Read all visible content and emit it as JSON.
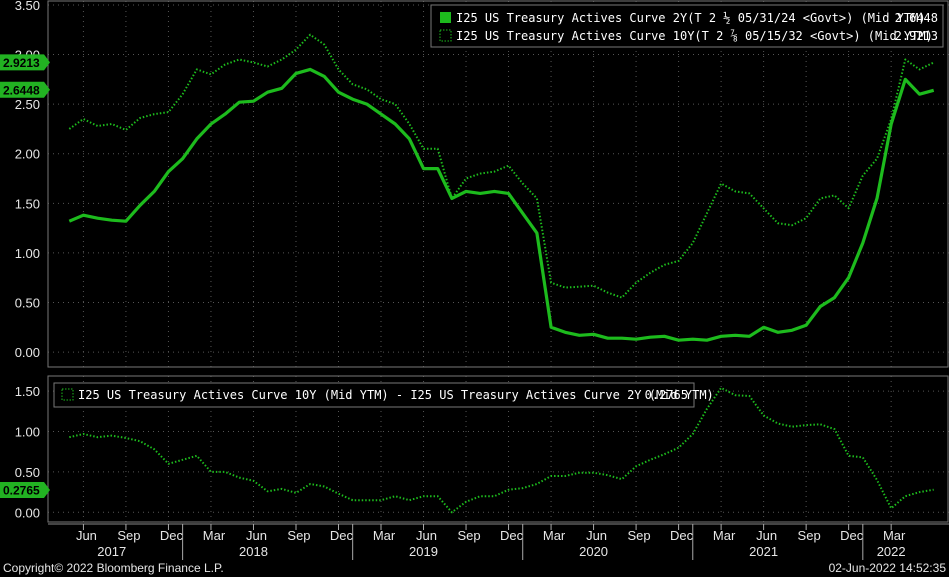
{
  "colors": {
    "background": "#000000",
    "line": "#1dbb1d",
    "tag": "#22b222",
    "grid": "#555555",
    "panel_border": "#777777"
  },
  "footer": {
    "copyright": "Copyright© 2022 Bloomberg Finance L.P.",
    "timestamp": "02-Jun-2022 14:52:35"
  },
  "chart_data": [
    {
      "type": "line",
      "panel": "top",
      "ylim": [
        -0.15,
        3.55
      ],
      "yticks": [
        "3.50",
        "3.00",
        "2.50",
        "2.00",
        "1.50",
        "1.00",
        "0.50",
        "0.00"
      ],
      "ytick_values": [
        3.5,
        3.0,
        2.5,
        2.0,
        1.5,
        1.0,
        0.5,
        0.0
      ],
      "x": [
        "2017-05",
        "2017-06",
        "2017-07",
        "2017-08",
        "2017-09",
        "2017-10",
        "2017-11",
        "2017-12",
        "2018-01",
        "2018-02",
        "2018-03",
        "2018-04",
        "2018-05",
        "2018-06",
        "2018-07",
        "2018-08",
        "2018-09",
        "2018-10",
        "2018-11",
        "2018-12",
        "2019-01",
        "2019-02",
        "2019-03",
        "2019-04",
        "2019-05",
        "2019-06",
        "2019-07",
        "2019-08",
        "2019-09",
        "2019-10",
        "2019-11",
        "2019-12",
        "2020-01",
        "2020-02",
        "2020-03",
        "2020-04",
        "2020-05",
        "2020-06",
        "2020-07",
        "2020-08",
        "2020-09",
        "2020-10",
        "2020-11",
        "2020-12",
        "2021-01",
        "2021-02",
        "2021-03",
        "2021-04",
        "2021-05",
        "2021-06",
        "2021-07",
        "2021-08",
        "2021-09",
        "2021-10",
        "2021-11",
        "2021-12",
        "2022-01",
        "2022-02",
        "2022-03",
        "2022-04",
        "2022-05",
        "2022-06"
      ],
      "series": [
        {
          "name": "I25 US Treasury Actives Curve 2Y(T 2 ½ 05/31/24 <Govt>) (Mid YTM)",
          "last": "2.6448",
          "style": "solid",
          "values": [
            1.32,
            1.38,
            1.35,
            1.33,
            1.32,
            1.48,
            1.62,
            1.82,
            1.95,
            2.15,
            2.3,
            2.4,
            2.52,
            2.53,
            2.62,
            2.66,
            2.81,
            2.85,
            2.78,
            2.62,
            2.55,
            2.5,
            2.4,
            2.3,
            2.15,
            1.85,
            1.85,
            1.55,
            1.62,
            1.6,
            1.62,
            1.6,
            1.4,
            1.2,
            0.25,
            0.2,
            0.17,
            0.18,
            0.14,
            0.14,
            0.13,
            0.15,
            0.16,
            0.12,
            0.13,
            0.12,
            0.16,
            0.17,
            0.16,
            0.25,
            0.2,
            0.22,
            0.27,
            0.46,
            0.55,
            0.75,
            1.1,
            1.55,
            2.3,
            2.75,
            2.6,
            2.64
          ]
        },
        {
          "name": "I25 US Treasury Actives Curve 10Y(T 2 ⅞ 05/15/32 <Govt>) (Mid YTM)",
          "last": "2.9213",
          "style": "dotted",
          "values": [
            2.25,
            2.35,
            2.28,
            2.3,
            2.24,
            2.36,
            2.4,
            2.42,
            2.6,
            2.85,
            2.8,
            2.9,
            2.95,
            2.92,
            2.88,
            2.95,
            3.05,
            3.2,
            3.1,
            2.85,
            2.7,
            2.65,
            2.55,
            2.5,
            2.3,
            2.05,
            2.05,
            1.55,
            1.75,
            1.8,
            1.82,
            1.88,
            1.7,
            1.55,
            0.7,
            0.65,
            0.66,
            0.67,
            0.6,
            0.55,
            0.7,
            0.8,
            0.88,
            0.92,
            1.1,
            1.4,
            1.7,
            1.62,
            1.6,
            1.45,
            1.3,
            1.28,
            1.35,
            1.55,
            1.58,
            1.45,
            1.78,
            1.95,
            2.35,
            2.95,
            2.85,
            2.92
          ]
        }
      ],
      "last_tags": [
        {
          "value": 2.9213,
          "label": "2.9213"
        },
        {
          "value": 2.6448,
          "label": "2.6448"
        }
      ]
    },
    {
      "type": "line",
      "panel": "bottom",
      "ylim": [
        -0.12,
        1.7
      ],
      "yticks": [
        "1.50",
        "1.00",
        "0.50",
        "0.00"
      ],
      "ytick_values": [
        1.5,
        1.0,
        0.5,
        0.0
      ],
      "series": [
        {
          "name": "I25 US Treasury Actives Curve 10Y (Mid YTM) - I25 US Treasury Actives Curve 2Y (Mid YTM)",
          "last": "0.2765",
          "style": "dotted",
          "values": [
            0.93,
            0.97,
            0.93,
            0.95,
            0.92,
            0.88,
            0.78,
            0.6,
            0.65,
            0.7,
            0.5,
            0.5,
            0.43,
            0.39,
            0.26,
            0.29,
            0.24,
            0.35,
            0.32,
            0.23,
            0.15,
            0.15,
            0.15,
            0.2,
            0.15,
            0.2,
            0.2,
            0.0,
            0.13,
            0.2,
            0.2,
            0.28,
            0.3,
            0.35,
            0.45,
            0.45,
            0.49,
            0.49,
            0.46,
            0.41,
            0.57,
            0.65,
            0.72,
            0.8,
            0.97,
            1.28,
            1.54,
            1.45,
            1.44,
            1.2,
            1.1,
            1.06,
            1.08,
            1.09,
            1.03,
            0.7,
            0.68,
            0.4,
            0.05,
            0.2,
            0.25,
            0.28
          ]
        }
      ],
      "last_tags": [
        {
          "value": 0.2765,
          "label": "0.2765"
        }
      ]
    }
  ],
  "x_axis": {
    "months": [
      {
        "x": "2017-06",
        "label": "Jun"
      },
      {
        "x": "2017-09",
        "label": "Sep"
      },
      {
        "x": "2017-12",
        "label": "Dec"
      },
      {
        "x": "2018-03",
        "label": "Mar"
      },
      {
        "x": "2018-06",
        "label": "Jun"
      },
      {
        "x": "2018-09",
        "label": "Sep"
      },
      {
        "x": "2018-12",
        "label": "Dec"
      },
      {
        "x": "2019-03",
        "label": "Mar"
      },
      {
        "x": "2019-06",
        "label": "Jun"
      },
      {
        "x": "2019-09",
        "label": "Sep"
      },
      {
        "x": "2019-12",
        "label": "Dec"
      },
      {
        "x": "2020-03",
        "label": "Mar"
      },
      {
        "x": "2020-06",
        "label": "Jun"
      },
      {
        "x": "2020-09",
        "label": "Sep"
      },
      {
        "x": "2020-12",
        "label": "Dec"
      },
      {
        "x": "2021-03",
        "label": "Mar"
      },
      {
        "x": "2021-06",
        "label": "Jun"
      },
      {
        "x": "2021-09",
        "label": "Sep"
      },
      {
        "x": "2021-12",
        "label": "Dec"
      },
      {
        "x": "2022-03",
        "label": "Mar"
      }
    ],
    "years": [
      {
        "x": "2017-08",
        "label": "2017"
      },
      {
        "x": "2018-06",
        "label": "2018"
      },
      {
        "x": "2019-06",
        "label": "2019"
      },
      {
        "x": "2020-06",
        "label": "2020"
      },
      {
        "x": "2021-06",
        "label": "2021"
      },
      {
        "x": "2022-03",
        "label": "2022"
      }
    ]
  }
}
